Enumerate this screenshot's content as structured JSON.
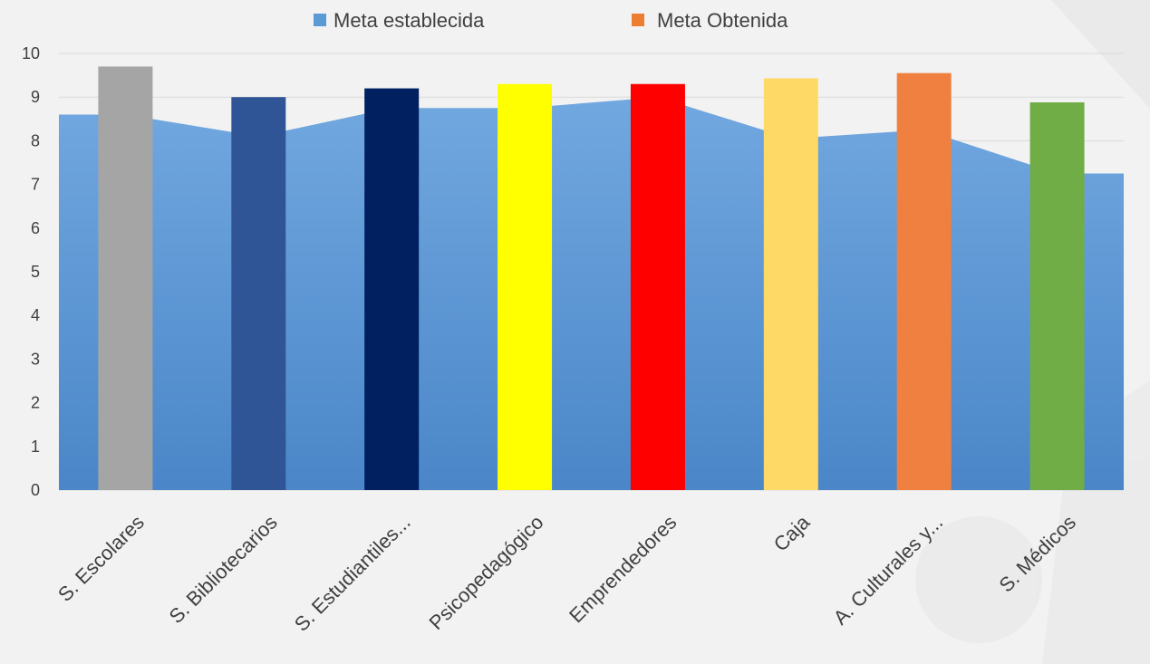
{
  "chart_data": {
    "type": "bar",
    "categories": [
      "S. Escolares",
      "S. Bibliotecarios",
      "S. Estudiantiles...",
      "Psicopedagógico",
      "Emprendedores",
      "Caja",
      "A. Culturales y...",
      "S. Médicos"
    ],
    "series": [
      {
        "name": "Meta establecida",
        "kind": "area",
        "values": [
          8.6,
          8.1,
          8.75,
          8.75,
          9.0,
          8.05,
          8.25,
          7.25
        ]
      },
      {
        "name": "Meta Obtenida",
        "kind": "bar",
        "values": [
          9.7,
          9.0,
          9.2,
          9.3,
          9.3,
          9.43,
          9.55,
          8.88
        ],
        "colors": [
          "#a5a5a5",
          "#2f5597",
          "#002060",
          "#ffff00",
          "#ff0000",
          "#ffd966",
          "#f08040",
          "#70ad47"
        ]
      }
    ],
    "ylim": [
      0,
      10
    ],
    "yticks": [
      "0",
      "1",
      "2",
      "3",
      "4",
      "5",
      "6",
      "7",
      "8",
      "9",
      "10"
    ],
    "grid": true,
    "legend": "top",
    "colors": {
      "area_top": "#72a8e0",
      "area_bottom": "#4a86c8",
      "legend_establecida": "#5b9bd5",
      "legend_obtenida": "#ed7d31"
    }
  }
}
